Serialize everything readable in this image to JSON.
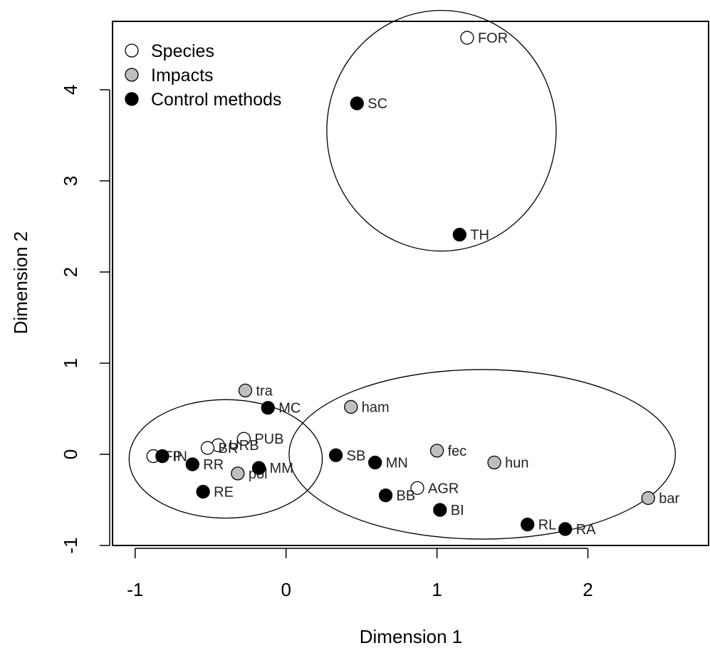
{
  "chart_data": {
    "type": "scatter",
    "title": "",
    "xlabel": "Dimension 1",
    "ylabel": "Dimension 2",
    "xlim": [
      -1.15,
      2.8
    ],
    "ylim": [
      -1.0,
      4.75
    ],
    "xticks": [
      -1,
      0,
      1,
      2
    ],
    "yticks": [
      -1,
      0,
      1,
      2,
      3,
      4
    ],
    "xtick_labels": [
      "-1",
      "0",
      "1",
      "2"
    ],
    "ytick_labels": [
      "-1",
      "0",
      "1",
      "2",
      "3",
      "4"
    ],
    "grid": false,
    "legend_position": "top-left",
    "series": [
      {
        "name": "Species",
        "fill": "#ffffff",
        "points": [
          {
            "label": "FOR",
            "x": 1.2,
            "y": 4.57
          },
          {
            "label": "PUB",
            "x": -0.28,
            "y": 0.17
          },
          {
            "label": "URB",
            "x": -0.45,
            "y": 0.1
          },
          {
            "label": "BR",
            "x": -0.52,
            "y": 0.07
          },
          {
            "label": "FP",
            "x": -0.88,
            "y": -0.02
          },
          {
            "label": "IN",
            "x": -0.82,
            "y": -0.02
          },
          {
            "label": "AGR",
            "x": 0.87,
            "y": -0.37
          }
        ]
      },
      {
        "name": "Impacts",
        "fill": "#bfbfbf",
        "points": [
          {
            "label": "tra",
            "x": -0.27,
            "y": 0.7
          },
          {
            "label": "ham",
            "x": 0.43,
            "y": 0.52
          },
          {
            "label": "fec",
            "x": 1.0,
            "y": 0.04
          },
          {
            "label": "hun",
            "x": 1.38,
            "y": -0.09
          },
          {
            "label": "pol",
            "x": -0.32,
            "y": -0.21
          },
          {
            "label": "bar",
            "x": 2.4,
            "y": -0.48
          }
        ]
      },
      {
        "name": "Control methods",
        "fill": "#000000",
        "points": [
          {
            "label": "SC",
            "x": 0.47,
            "y": 3.85
          },
          {
            "label": "TH",
            "x": 1.15,
            "y": 2.41
          },
          {
            "label": "MC",
            "x": -0.12,
            "y": 0.51
          },
          {
            "label": "SB",
            "x": 0.33,
            "y": -0.01
          },
          {
            "label": "MN",
            "x": 0.59,
            "y": -0.09
          },
          {
            "label": "RR",
            "x": -0.62,
            "y": -0.11
          },
          {
            "label": "MM",
            "x": -0.18,
            "y": -0.15
          },
          {
            "label": "",
            "x": -0.82,
            "y": -0.02
          },
          {
            "label": "RE",
            "x": -0.55,
            "y": -0.41
          },
          {
            "label": "BB",
            "x": 0.66,
            "y": -0.45
          },
          {
            "label": "BI",
            "x": 1.02,
            "y": -0.61
          },
          {
            "label": "RL",
            "x": 1.6,
            "y": -0.77
          },
          {
            "label": "RA",
            "x": 1.85,
            "y": -0.82
          }
        ]
      }
    ],
    "annotations": {
      "ellipses": [
        {
          "cx": 1.03,
          "cy": 3.55,
          "rx": 0.76,
          "ry": 1.32
        },
        {
          "cx": -0.4,
          "cy": -0.05,
          "rx": 0.64,
          "ry": 0.65
        },
        {
          "cx": 1.3,
          "cy": 0.0,
          "rx": 1.28,
          "ry": 0.93
        }
      ]
    }
  }
}
